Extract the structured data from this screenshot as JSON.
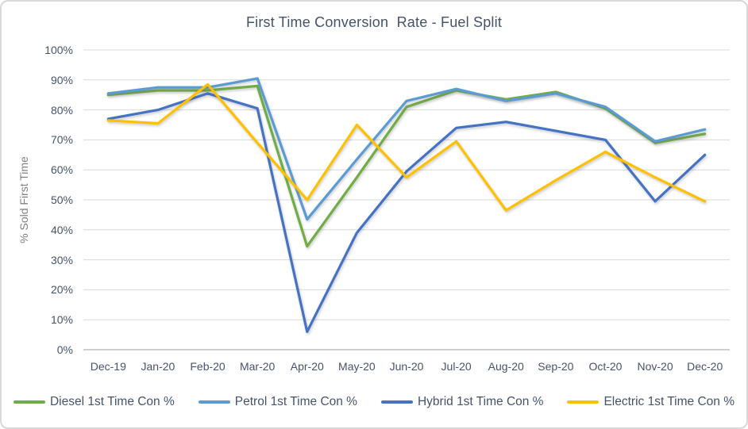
{
  "chart_data": {
    "type": "line",
    "title": "First Time Conversion  Rate - Fuel Split",
    "xlabel": "",
    "ylabel": "% Sold First Time",
    "categories": [
      "Dec-19",
      "Jan-20",
      "Feb-20",
      "Mar-20",
      "Apr-20",
      "May-20",
      "Jun-20",
      "Jul-20",
      "Aug-20",
      "Sep-20",
      "Oct-20",
      "Nov-20",
      "Dec-20"
    ],
    "ylim": [
      0,
      100
    ],
    "y_ticks": [
      0,
      10,
      20,
      30,
      40,
      50,
      60,
      70,
      80,
      90,
      100
    ],
    "y_tick_suffix": "%",
    "grid": true,
    "legend_position": "bottom",
    "series": [
      {
        "name": "Diesel 1st Time Con %",
        "color": "#70AD47",
        "values": [
          85,
          86.5,
          86.5,
          88,
          34.5,
          57.5,
          81,
          86.5,
          83.5,
          86,
          80.5,
          69,
          72
        ]
      },
      {
        "name": "Petrol 1st Time Con %",
        "color": "#5B9BD5",
        "values": [
          85.5,
          87.5,
          87.5,
          90.5,
          43.5,
          63.5,
          83,
          87,
          83,
          85.5,
          81,
          69.5,
          73.5
        ]
      },
      {
        "name": "Hybrid 1st Time Con %",
        "color": "#4472C4",
        "values": [
          77,
          80,
          85.5,
          80.5,
          6,
          39,
          59.5,
          74,
          76,
          73,
          70,
          49.5,
          65
        ]
      },
      {
        "name": "Electric 1st Time Con %",
        "color": "#FFC000",
        "values": [
          76.5,
          75.5,
          88.5,
          69,
          50,
          75,
          57.5,
          69.5,
          46.5,
          56.5,
          66,
          57.5,
          49.5
        ]
      }
    ],
    "colors": {
      "gridline": "#D9D9D9",
      "axis_line": "#BFBFBF",
      "tick_text": "#44546A",
      "title_text": "#44546A",
      "y_axis_title_text": "#7F7F7F"
    }
  }
}
